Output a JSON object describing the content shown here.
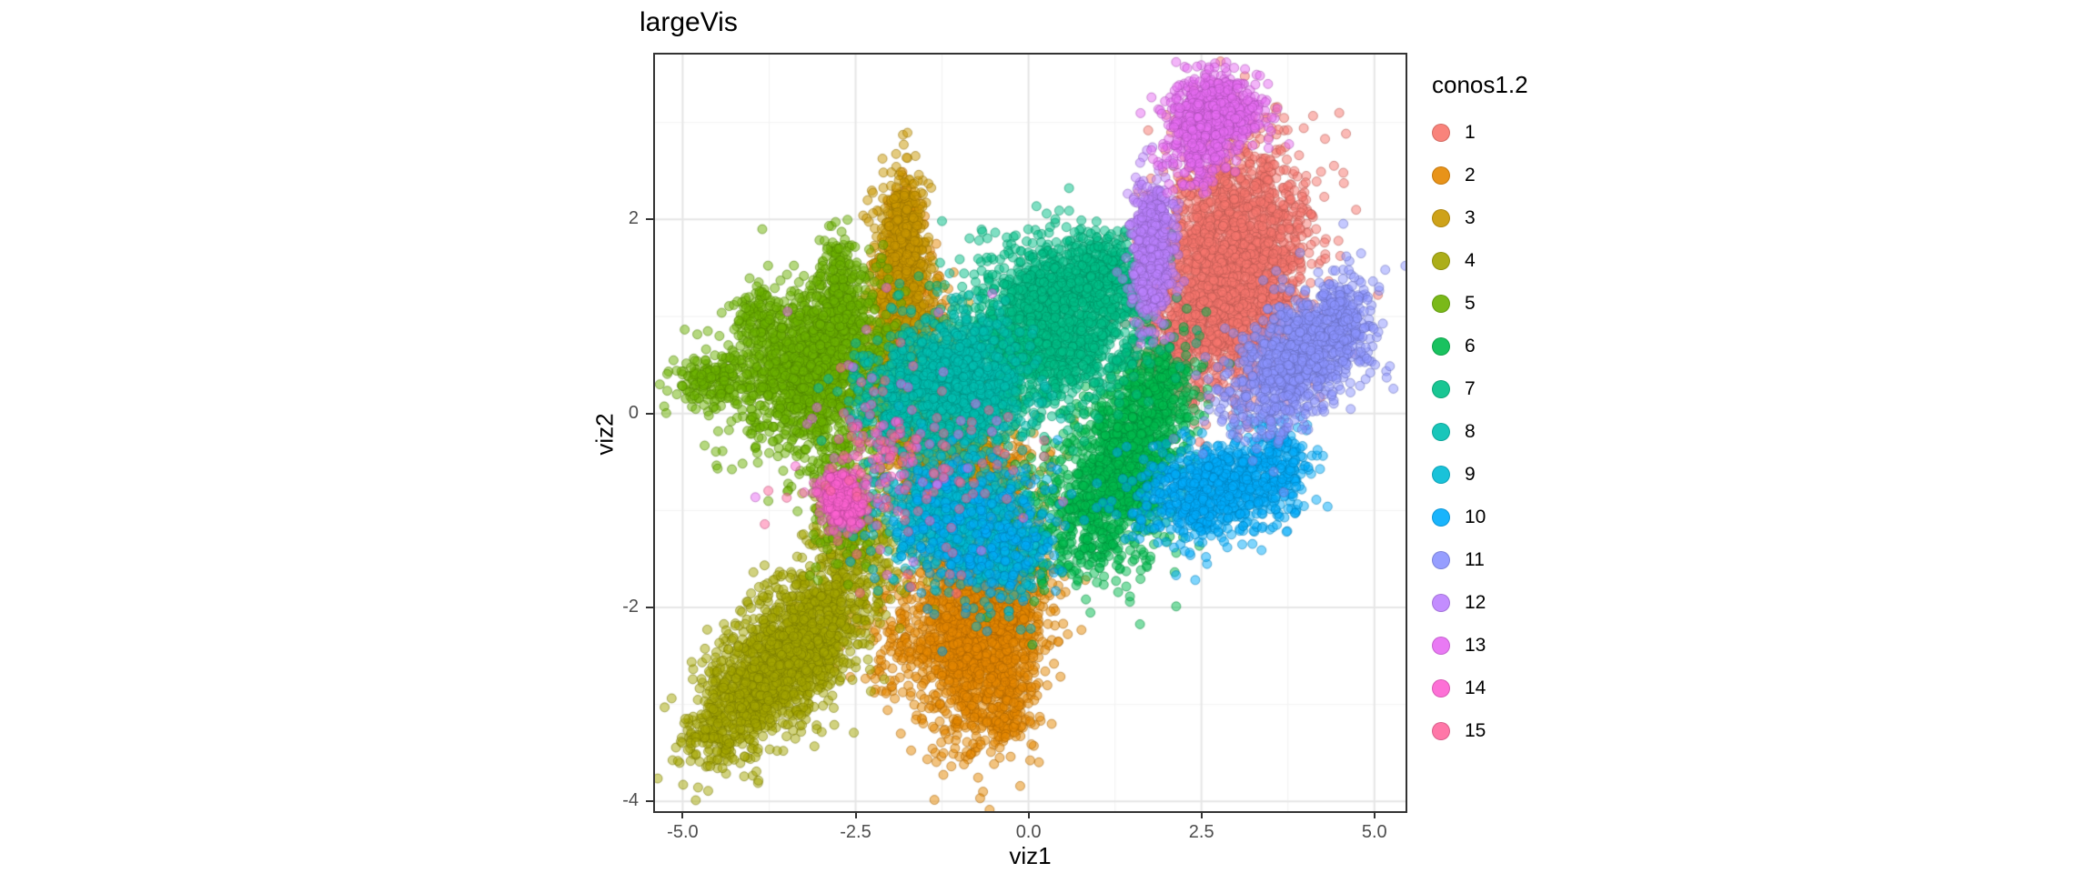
{
  "chart_data": {
    "type": "scatter",
    "title": "largeVis",
    "xlabel": "viz1",
    "ylabel": "viz2",
    "legend_title": "conos1.2",
    "xlim": [
      -5.4,
      5.45
    ],
    "ylim": [
      -4.1,
      3.7
    ],
    "x_ticks": {
      "values": [
        -5,
        -2.5,
        0,
        2.5,
        5
      ],
      "labels": [
        "-5.0",
        "-2.5",
        "0.0",
        "2.5",
        "5.0"
      ]
    },
    "y_ticks": {
      "values": [
        -4,
        -2,
        0,
        2
      ],
      "labels": [
        "-4",
        "-2",
        "0",
        "2"
      ]
    },
    "x_minor": [
      -3.75,
      -1.25,
      1.25,
      3.75
    ],
    "y_minor": [
      -3,
      -1,
      1,
      3
    ],
    "grid": true,
    "legend_position": "right",
    "point_radius": 5,
    "point_alpha": 0.5,
    "panel_border_color": "#333333",
    "major_grid_color": "#e6e6e6",
    "minor_grid_color": "#f2f2f2",
    "points_encoding": "gaussian_clusters",
    "series": [
      {
        "name": "1",
        "color": "#F8766D",
        "clusters": [
          {
            "cx": 2.95,
            "cy": 1.5,
            "sx": 0.55,
            "sy": 0.62,
            "corr": 0.1,
            "n": 2600
          },
          {
            "cx": 2.15,
            "cy": 0.75,
            "sx": 0.3,
            "sy": 0.3,
            "corr": 0,
            "n": 200
          }
        ]
      },
      {
        "name": "2",
        "color": "#E58700",
        "clusters": [
          {
            "cx": -0.65,
            "cy": -2.1,
            "sx": 0.42,
            "sy": 0.58,
            "corr": 0.2,
            "n": 2100
          },
          {
            "cx": -0.95,
            "cy": -0.7,
            "sx": 0.5,
            "sy": 0.4,
            "corr": 0,
            "n": 600
          },
          {
            "cx": -1.6,
            "cy": 0.6,
            "sx": 0.28,
            "sy": 0.6,
            "corr": 0,
            "n": 330
          },
          {
            "cx": -1.55,
            "cy": -2.2,
            "sx": 0.5,
            "sy": 0.4,
            "corr": 0.3,
            "n": 250
          },
          {
            "cx": -0.3,
            "cy": -3.0,
            "sx": 0.25,
            "sy": 0.3,
            "corr": 0,
            "n": 150
          },
          {
            "cx": -1.8,
            "cy": 2.05,
            "sx": 0.12,
            "sy": 0.18,
            "corr": 0,
            "n": 120
          }
        ]
      },
      {
        "name": "3",
        "color": "#C99800",
        "clusters": [
          {
            "cx": -1.85,
            "cy": 1.15,
            "sx": 0.2,
            "sy": 0.55,
            "corr": 0,
            "n": 1000
          },
          {
            "cx": -1.55,
            "cy": 0.15,
            "sx": 0.38,
            "sy": 0.45,
            "corr": 0,
            "n": 650
          },
          {
            "cx": -1.8,
            "cy": 2.0,
            "sx": 0.13,
            "sy": 0.2,
            "corr": 0,
            "n": 170
          },
          {
            "cx": -1.15,
            "cy": -0.25,
            "sx": 0.4,
            "sy": 0.4,
            "corr": 0,
            "n": 400
          }
        ]
      },
      {
        "name": "4",
        "color": "#A3A500",
        "clusters": [
          {
            "cx": -3.45,
            "cy": -2.45,
            "sx": 0.62,
            "sy": 0.48,
            "corr": 0.65,
            "n": 1800
          },
          {
            "cx": -2.55,
            "cy": -1.25,
            "sx": 0.3,
            "sy": 0.3,
            "corr": 0,
            "n": 180
          },
          {
            "cx": -4.5,
            "cy": -3.25,
            "sx": 0.25,
            "sy": 0.22,
            "corr": 0.3,
            "n": 130
          }
        ]
      },
      {
        "name": "5",
        "color": "#6BB100",
        "clusters": [
          {
            "cx": -3.1,
            "cy": 0.5,
            "sx": 0.55,
            "sy": 0.42,
            "corr": 0.25,
            "n": 1500
          },
          {
            "cx": -4.5,
            "cy": 0.35,
            "sx": 0.33,
            "sy": 0.14,
            "corr": 0,
            "n": 200
          },
          {
            "cx": -2.75,
            "cy": 1.3,
            "sx": 0.16,
            "sy": 0.28,
            "corr": 0,
            "n": 220
          },
          {
            "cx": -2.75,
            "cy": -0.7,
            "sx": 0.3,
            "sy": 0.45,
            "corr": 0,
            "n": 260
          },
          {
            "cx": -3.9,
            "cy": 1.0,
            "sx": 0.2,
            "sy": 0.2,
            "corr": 0,
            "n": 120
          }
        ]
      },
      {
        "name": "6",
        "color": "#00BB4E",
        "clusters": [
          {
            "cx": 1.35,
            "cy": -0.5,
            "sx": 0.45,
            "sy": 0.5,
            "corr": 0.35,
            "n": 1250
          },
          {
            "cx": 0.5,
            "cy": -1.15,
            "sx": 0.7,
            "sy": 0.4,
            "corr": 0,
            "n": 300
          },
          {
            "cx": 1.9,
            "cy": 0.3,
            "sx": 0.25,
            "sy": 0.25,
            "corr": 0,
            "n": 150
          }
        ]
      },
      {
        "name": "7",
        "color": "#00C087",
        "clusters": [
          {
            "cx": 0.35,
            "cy": 0.95,
            "sx": 0.6,
            "sy": 0.4,
            "corr": 0,
            "n": 1600
          },
          {
            "cx": 1.05,
            "cy": 1.45,
            "sx": 0.3,
            "sy": 0.22,
            "corr": 0,
            "n": 300
          },
          {
            "cx": -0.4,
            "cy": 0.4,
            "sx": 0.4,
            "sy": 0.3,
            "corr": 0,
            "n": 250
          }
        ]
      },
      {
        "name": "8",
        "color": "#00C0B2",
        "clusters": [
          {
            "cx": -1.05,
            "cy": 0.3,
            "sx": 0.5,
            "sy": 0.35,
            "corr": 0,
            "n": 1050
          },
          {
            "cx": -1.95,
            "cy": 0.1,
            "sx": 0.4,
            "sy": 0.3,
            "corr": 0,
            "n": 220
          }
        ]
      },
      {
        "name": "9",
        "color": "#00BBD5",
        "clusters": [
          {
            "cx": -1.1,
            "cy": -1.05,
            "sx": 0.5,
            "sy": 0.3,
            "corr": 0,
            "n": 850
          },
          {
            "cx": -0.35,
            "cy": -1.5,
            "sx": 0.3,
            "sy": 0.25,
            "corr": 0,
            "n": 220
          }
        ]
      },
      {
        "name": "10",
        "color": "#00ACFC",
        "clusters": [
          {
            "cx": 2.75,
            "cy": -0.8,
            "sx": 0.55,
            "sy": 0.25,
            "corr": 0.2,
            "n": 850
          },
          {
            "cx": 3.6,
            "cy": -0.45,
            "sx": 0.25,
            "sy": 0.2,
            "corr": 0,
            "n": 150
          },
          {
            "cx": -0.7,
            "cy": -1.2,
            "sx": 0.6,
            "sy": 0.4,
            "corr": 0,
            "n": 230
          }
        ]
      },
      {
        "name": "11",
        "color": "#8B93FF",
        "clusters": [
          {
            "cx": 3.9,
            "cy": 0.55,
            "sx": 0.5,
            "sy": 0.35,
            "corr": 0.45,
            "n": 1050
          },
          {
            "cx": 4.55,
            "cy": 1.05,
            "sx": 0.2,
            "sy": 0.22,
            "corr": 0,
            "n": 140
          }
        ]
      },
      {
        "name": "12",
        "color": "#BC81FF",
        "clusters": [
          {
            "cx": 1.8,
            "cy": 1.85,
            "sx": 0.16,
            "sy": 0.3,
            "corr": 0,
            "n": 420
          },
          {
            "cx": 1.75,
            "cy": 1.25,
            "sx": 0.16,
            "sy": 0.2,
            "corr": 0,
            "n": 110
          }
        ]
      },
      {
        "name": "13",
        "color": "#E76BF3",
        "clusters": [
          {
            "cx": 2.7,
            "cy": 3.1,
            "sx": 0.32,
            "sy": 0.18,
            "corr": 0,
            "n": 650
          },
          {
            "cx": 2.45,
            "cy": 2.7,
            "sx": 0.22,
            "sy": 0.18,
            "corr": 0,
            "n": 180
          },
          {
            "cx": -2.0,
            "cy": -0.3,
            "sx": 0.9,
            "sy": 0.7,
            "corr": 0,
            "n": 50
          }
        ]
      },
      {
        "name": "14",
        "color": "#FD61D1",
        "clusters": [
          {
            "cx": -2.7,
            "cy": -0.9,
            "sx": 0.14,
            "sy": 0.13,
            "corr": 0,
            "n": 300
          },
          {
            "cx": -2.2,
            "cy": -0.45,
            "sx": 0.5,
            "sy": 0.4,
            "corr": 0,
            "n": 70
          }
        ]
      },
      {
        "name": "15",
        "color": "#FF689E",
        "clusters": [
          {
            "cx": -1.6,
            "cy": -0.7,
            "sx": 0.7,
            "sy": 0.55,
            "corr": 0,
            "n": 80
          }
        ]
      }
    ]
  }
}
